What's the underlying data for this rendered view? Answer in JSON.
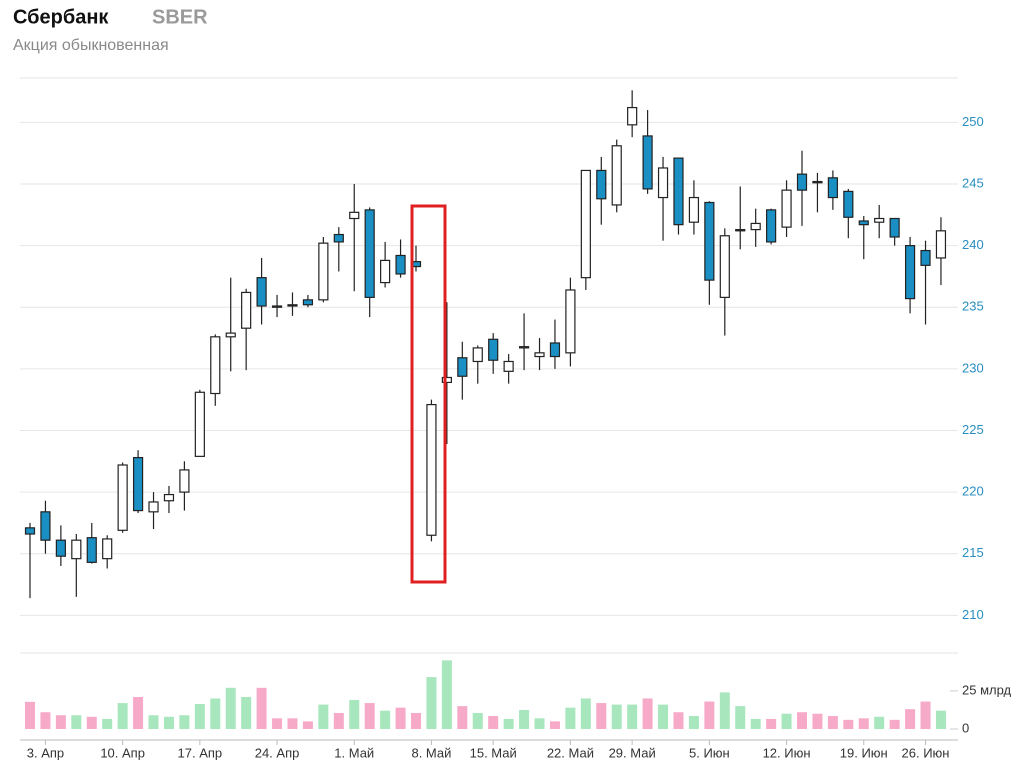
{
  "chart_data": {
    "type": "candlestick",
    "title": "Сбербанк",
    "ticker": "SBER",
    "subtitle": "Акция обыкновенная",
    "categories": [
      null,
      "3. Апр",
      null,
      null,
      null,
      null,
      "10. Апр",
      null,
      null,
      null,
      null,
      "17. Апр",
      null,
      null,
      null,
      null,
      "24. Апр",
      null,
      null,
      null,
      null,
      "1. Май",
      null,
      null,
      null,
      null,
      "8. Май",
      null,
      null,
      null,
      "15. Май",
      null,
      null,
      null,
      null,
      "22. Май",
      null,
      null,
      null,
      "29. Май",
      null,
      null,
      null,
      null,
      "5. Июн",
      null,
      null,
      null,
      null,
      "12. Июн",
      null,
      null,
      null,
      null,
      "19. Июн",
      null,
      null,
      null,
      "26. Июн",
      null
    ],
    "open": [
      217.1,
      218.4,
      216.1,
      214.6,
      216.3,
      214.6,
      216.9,
      222.8,
      218.4,
      219.3,
      220.0,
      222.9,
      228.0,
      232.6,
      233.3,
      237.4,
      235.1,
      235.2,
      235.6,
      235.6,
      240.9,
      242.2,
      242.9,
      237.0,
      239.2,
      238.7,
      216.5,
      228.9,
      230.9,
      230.6,
      232.4,
      229.8,
      231.7,
      231.0,
      232.1,
      231.3,
      237.4,
      246.1,
      243.3,
      249.8,
      248.9,
      243.9,
      247.1,
      241.9,
      243.5,
      235.8,
      241.2,
      241.3,
      242.9,
      241.5,
      245.8,
      245.2,
      245.5,
      244.4,
      242.0,
      241.9,
      242.2,
      240.0,
      239.6,
      239.0
    ],
    "high": [
      217.5,
      219.3,
      217.3,
      216.6,
      217.5,
      216.5,
      222.4,
      223.4,
      220.0,
      220.5,
      222.5,
      228.3,
      232.8,
      237.4,
      236.5,
      239.0,
      236.0,
      236.2,
      236.0,
      240.7,
      241.5,
      245.0,
      243.1,
      240.3,
      240.5,
      240.0,
      227.5,
      235.4,
      232.2,
      231.9,
      232.9,
      231.2,
      234.5,
      232.5,
      234.0,
      237.4,
      246.1,
      247.2,
      248.6,
      252.6,
      251.0,
      247.2,
      247.1,
      245.3,
      243.6,
      241.4,
      244.8,
      243.0,
      243.0,
      245.3,
      247.7,
      245.9,
      246.1,
      244.6,
      242.4,
      243.3,
      242.2,
      240.7,
      240.4,
      242.3
    ],
    "low": [
      211.4,
      215.0,
      214.0,
      211.5,
      214.2,
      213.8,
      216.7,
      218.3,
      217.0,
      218.3,
      218.5,
      222.9,
      227.0,
      229.8,
      229.9,
      233.6,
      234.2,
      234.3,
      235.0,
      235.4,
      237.9,
      236.3,
      234.2,
      236.6,
      237.4,
      237.9,
      216.0,
      223.9,
      227.5,
      228.8,
      229.6,
      228.8,
      229.9,
      229.9,
      230.0,
      230.2,
      236.4,
      241.7,
      242.7,
      248.8,
      244.2,
      240.4,
      240.9,
      240.9,
      235.2,
      232.7,
      239.7,
      239.9,
      240.1,
      240.7,
      241.6,
      242.7,
      242.9,
      240.6,
      238.9,
      240.6,
      240.0,
      234.5,
      233.6,
      236.8
    ],
    "close": [
      216.6,
      216.1,
      214.8,
      216.1,
      214.3,
      216.2,
      222.2,
      218.5,
      219.2,
      219.8,
      221.8,
      228.1,
      232.6,
      232.9,
      236.2,
      235.1,
      235.0,
      235.1,
      235.2,
      240.2,
      240.3,
      242.7,
      235.8,
      238.8,
      237.7,
      238.3,
      227.1,
      229.3,
      229.4,
      231.7,
      230.7,
      230.6,
      231.8,
      231.3,
      231.0,
      236.4,
      246.1,
      243.8,
      248.1,
      251.2,
      244.6,
      246.3,
      241.7,
      243.9,
      237.2,
      240.8,
      241.3,
      241.8,
      240.3,
      244.5,
      244.5,
      245.1,
      243.9,
      242.3,
      241.7,
      242.2,
      240.7,
      235.7,
      238.4,
      241.2
    ],
    "volume": [
      17.8,
      11,
      9,
      9,
      8,
      6.6,
      17,
      21,
      9,
      8,
      9,
      16.4,
      20,
      27,
      21,
      27,
      7,
      7,
      5,
      16,
      10.5,
      19,
      17,
      12,
      14,
      10.5,
      34,
      45,
      15,
      10.5,
      8.5,
      6.6,
      12.5,
      7,
      5,
      14,
      20,
      17,
      16,
      16,
      20,
      16,
      11,
      8.5,
      18,
      24,
      15,
      6.6,
      6.6,
      10,
      11,
      10,
      8.5,
      6,
      7,
      8,
      6,
      13,
      18,
      12
    ],
    "ylim": [
      208,
      253.6
    ],
    "yticks": [
      210,
      215,
      220,
      225,
      230,
      235,
      240,
      245,
      250
    ],
    "volume_ylim": [
      0,
      48.5
    ],
    "volume_ticks": [
      {
        "value": 25,
        "label": "25 млрд"
      },
      0
    ],
    "grid": true,
    "up_color": "#ffffff",
    "down_color": "#1a8fc4",
    "volume_up_color": "#a8e6bd",
    "volume_down_color": "#f6aac8",
    "axis_color": "#2a8fc0"
  }
}
